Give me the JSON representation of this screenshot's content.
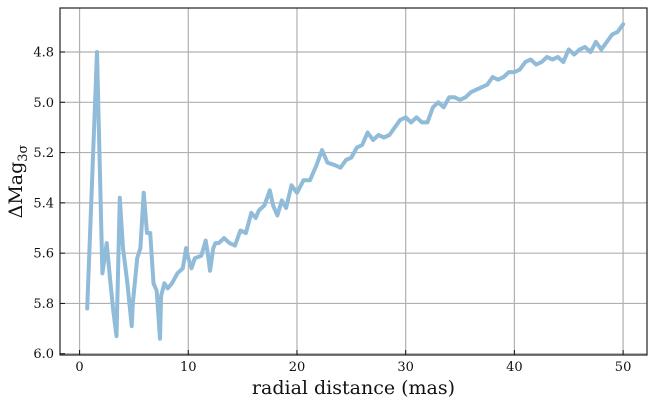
{
  "chart_data": {
    "type": "line",
    "title": "",
    "xlabel": "radial distance (mas)",
    "ylabel_base": "ΔMag",
    "ylabel_sub": "3σ",
    "xlim": [
      -1.8,
      52.2
    ],
    "ylim": [
      6.005,
      4.625
    ],
    "y_inverted": true,
    "grid": true,
    "x_ticks": [
      0,
      10,
      20,
      30,
      40,
      50
    ],
    "x_tick_labels": [
      "0",
      "10",
      "20",
      "30",
      "40",
      "50"
    ],
    "y_ticks": [
      4.8,
      5.0,
      5.2,
      5.4,
      5.6,
      5.8,
      6.0
    ],
    "y_tick_labels": [
      "4.8",
      "5.0",
      "5.2",
      "5.4",
      "5.6",
      "5.8",
      "6.0"
    ],
    "colors": {
      "series": "#90bbd9",
      "grid": "#b0b0b0",
      "frame": "#222222"
    },
    "series": [
      {
        "name": "",
        "x": [
          0.7,
          1.6,
          2.1,
          2.5,
          2.8,
          3.1,
          3.4,
          3.7,
          3.8,
          4.0,
          4.4,
          4.8,
          4.9,
          5.3,
          5.6,
          5.9,
          6.2,
          6.5,
          6.8,
          7.1,
          7.4,
          7.5,
          7.8,
          8.1,
          8.5,
          9.0,
          9.5,
          9.8,
          10.0,
          10.3,
          10.6,
          11.2,
          11.6,
          11.8,
          12.0,
          12.3,
          12.5,
          12.8,
          13.3,
          13.8,
          14.3,
          14.8,
          15.3,
          15.8,
          16.2,
          16.5,
          17.0,
          17.5,
          17.8,
          18.2,
          18.6,
          19.0,
          19.5,
          20.0,
          20.6,
          21.2,
          21.8,
          22.3,
          22.8,
          23.5,
          24.0,
          24.5,
          25.0,
          25.5,
          26.0,
          26.5,
          27.0,
          27.5,
          28.0,
          28.5,
          29.0,
          29.5,
          30.0,
          30.5,
          31.0,
          31.5,
          32.0,
          32.5,
          33.0,
          33.5,
          34.0,
          34.5,
          35.0,
          35.5,
          36.0,
          36.5,
          37.0,
          37.5,
          38.0,
          38.5,
          39.0,
          39.5,
          40.0,
          40.5,
          41.0,
          41.5,
          42.0,
          42.5,
          43.0,
          43.5,
          44.0,
          44.5,
          45.0,
          45.5,
          46.0,
          46.5,
          47.0,
          47.5,
          48.0,
          48.5,
          49.0,
          49.5,
          50.0
        ],
        "values": [
          5.82,
          4.8,
          5.68,
          5.56,
          5.7,
          5.83,
          5.93,
          5.38,
          5.45,
          5.58,
          5.72,
          5.89,
          5.8,
          5.62,
          5.58,
          5.36,
          5.52,
          5.52,
          5.72,
          5.75,
          5.94,
          5.77,
          5.72,
          5.74,
          5.72,
          5.68,
          5.66,
          5.58,
          5.62,
          5.66,
          5.62,
          5.61,
          5.55,
          5.6,
          5.67,
          5.58,
          5.56,
          5.56,
          5.54,
          5.56,
          5.57,
          5.51,
          5.52,
          5.44,
          5.46,
          5.43,
          5.41,
          5.35,
          5.41,
          5.45,
          5.39,
          5.42,
          5.33,
          5.36,
          5.31,
          5.31,
          5.25,
          5.19,
          5.24,
          5.25,
          5.26,
          5.23,
          5.22,
          5.18,
          5.17,
          5.12,
          5.15,
          5.13,
          5.14,
          5.13,
          5.1,
          5.07,
          5.06,
          5.08,
          5.06,
          5.08,
          5.08,
          5.02,
          5.0,
          5.02,
          4.98,
          4.98,
          4.99,
          4.98,
          4.96,
          4.95,
          4.94,
          4.93,
          4.9,
          4.91,
          4.9,
          4.88,
          4.88,
          4.87,
          4.84,
          4.83,
          4.85,
          4.84,
          4.82,
          4.83,
          4.82,
          4.84,
          4.79,
          4.81,
          4.79,
          4.78,
          4.8,
          4.76,
          4.79,
          4.76,
          4.73,
          4.72,
          4.69
        ]
      }
    ]
  }
}
